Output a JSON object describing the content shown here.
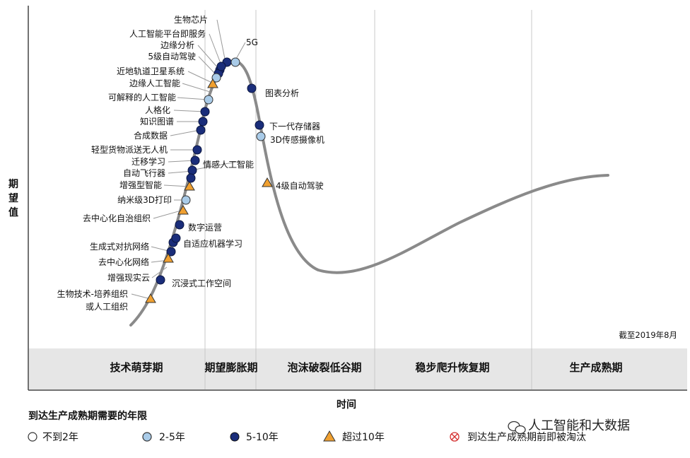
{
  "y_axis_label": [
    "期",
    "望",
    "值"
  ],
  "x_axis_label": "时间",
  "date_note": "截至2019年8月",
  "phases": [
    "技术萌芽期",
    "期望膨胀期",
    "泡沫破裂低谷期",
    "稳步爬升恢复期",
    "生产成熟期"
  ],
  "legend": {
    "title": "到达生产成熟期需要的年限",
    "items": [
      {
        "label": "不到2年",
        "shape": "circle-white"
      },
      {
        "label": "2-5年",
        "shape": "circle-light"
      },
      {
        "label": "5-10年",
        "shape": "circle-dark"
      },
      {
        "label": "超过10年",
        "shape": "triangle"
      },
      {
        "label": "到达生产成熟期前即被淘汰",
        "shape": "cross-circle"
      }
    ]
  },
  "technologies": [
    {
      "name": "生物芯片",
      "type": "circle-dark"
    },
    {
      "name": "人工智能平台即服务",
      "type": "circle-dark"
    },
    {
      "name": "边缘分析",
      "type": "circle-dark"
    },
    {
      "name": "5级自动驾驶",
      "type": "circle-light"
    },
    {
      "name": "近地轨道卫星系统",
      "type": "circle-dark"
    },
    {
      "name": "边缘人工智能",
      "type": "triangle"
    },
    {
      "name": "可解释的人工智能",
      "type": "circle-light"
    },
    {
      "name": "人格化",
      "type": "circle-dark"
    },
    {
      "name": "知识图谱",
      "type": "circle-dark"
    },
    {
      "name": "合成数据",
      "type": "circle-dark"
    },
    {
      "name": "轻型货物派送无人机",
      "type": "circle-dark"
    },
    {
      "name": "迁移学习",
      "type": "circle-dark"
    },
    {
      "name": "自动飞行器",
      "type": "circle-dark"
    },
    {
      "name": "增强型智能",
      "type": "triangle"
    },
    {
      "name": "纳米级3D打印",
      "type": "circle-light"
    },
    {
      "name": "去中心化自治组织",
      "type": "triangle"
    },
    {
      "name": "生成式对抗网络",
      "type": "circle-dark"
    },
    {
      "name": "去中心化网络",
      "type": "circle-dark"
    },
    {
      "name": "增强现实云",
      "type": "triangle"
    },
    {
      "name": "生物技术-培养组织\n或人工组织",
      "type": "triangle"
    },
    {
      "name": "5G",
      "type": "circle-light"
    },
    {
      "name": "图表分析",
      "type": "circle-dark"
    },
    {
      "name": "下一代存储器",
      "type": "circle-dark"
    },
    {
      "name": "3D传感摄像机",
      "type": "circle-light"
    },
    {
      "name": "情感人工智能",
      "type": "circle-dark"
    },
    {
      "name": "4级自动驾驶",
      "type": "triangle"
    },
    {
      "name": "数字运营",
      "type": "circle-dark"
    },
    {
      "name": "自适应机器学习",
      "type": "circle-dark"
    },
    {
      "name": "沉浸式工作空间",
      "type": "circle-dark"
    }
  ],
  "colors": {
    "curve": "#8a8a8a",
    "dark": "#1a2d7a",
    "light": "#a9cbe8",
    "triangle": "#f0a030",
    "band": "#e6e6e6",
    "red": "#d43030"
  },
  "watermark": "人工智能和大数据"
}
